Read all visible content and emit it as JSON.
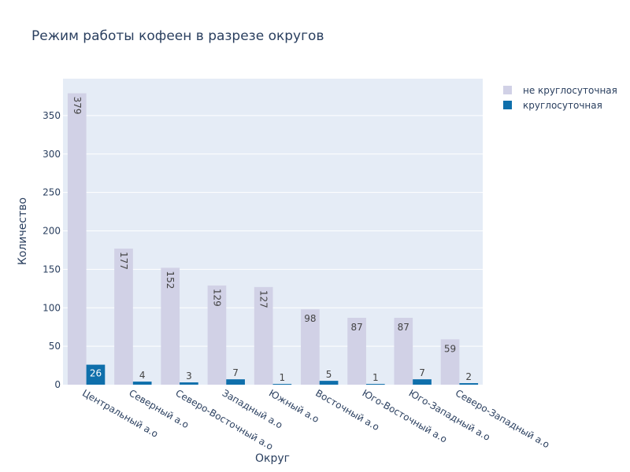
{
  "chart_data": {
    "type": "bar",
    "title": "Режим работы кофеен в разрезе округов",
    "xlabel": "Округ",
    "ylabel": "Количество",
    "categories": [
      "Центральный а.о",
      "Северный а.о",
      "Северо-Восточный а.о",
      "Западный а.о",
      "Южный а.о",
      "Восточный а.о",
      "Юго-Восточный а.о",
      "Юго-Западный а.о",
      "Северо-Западный а.о"
    ],
    "series": [
      {
        "name": "не круглосуточная",
        "color": "#d1d1e6",
        "values": [
          379,
          177,
          152,
          129,
          127,
          98,
          87,
          87,
          59
        ]
      },
      {
        "name": "круглосуточная",
        "color": "#0f6fab",
        "values": [
          26,
          4,
          3,
          7,
          1,
          5,
          1,
          7,
          2
        ]
      }
    ],
    "ylim": [
      0,
      398
    ],
    "yticks": [
      0,
      50,
      100,
      150,
      200,
      250,
      300,
      350
    ],
    "grid": true,
    "legend_position": "top-right",
    "plot_background": "#e5ecf6"
  }
}
